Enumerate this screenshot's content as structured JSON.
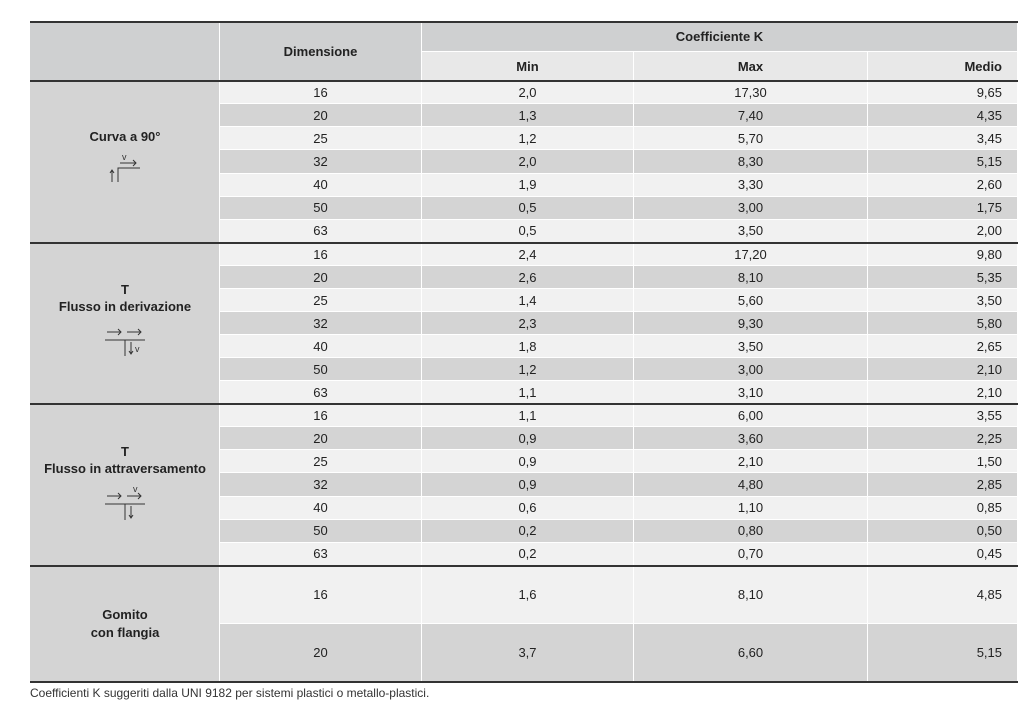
{
  "header": {
    "dimension": "Dimensione",
    "coefficient": "Coefficiente K",
    "subcolumns": [
      "Min",
      "Max",
      "Medio"
    ]
  },
  "groups": [
    {
      "label": [
        "Curva a 90°"
      ],
      "icon": "v",
      "rows": [
        [
          "16",
          "2,0",
          "17,30",
          "9,65"
        ],
        [
          "20",
          "1,3",
          "7,40",
          "4,35"
        ],
        [
          "25",
          "1,2",
          "5,70",
          "3,45"
        ],
        [
          "32",
          "2,0",
          "8,30",
          "5,15"
        ],
        [
          "40",
          "1,9",
          "3,30",
          "2,60"
        ],
        [
          "50",
          "0,5",
          "3,00",
          "1,75"
        ],
        [
          "63",
          "0,5",
          "3,50",
          "2,00"
        ]
      ]
    },
    {
      "label": [
        "T",
        "Flusso in derivazione"
      ],
      "icon": "v",
      "rows": [
        [
          "16",
          "2,4",
          "17,20",
          "9,80"
        ],
        [
          "20",
          "2,6",
          "8,10",
          "5,35"
        ],
        [
          "25",
          "1,4",
          "5,60",
          "3,50"
        ],
        [
          "32",
          "2,3",
          "9,30",
          "5,80"
        ],
        [
          "40",
          "1,8",
          "3,50",
          "2,65"
        ],
        [
          "50",
          "1,2",
          "3,00",
          "2,10"
        ],
        [
          "63",
          "1,1",
          "3,10",
          "2,10"
        ]
      ]
    },
    {
      "label": [
        "T",
        "Flusso in attraversamento"
      ],
      "icon": "v",
      "rows": [
        [
          "16",
          "1,1",
          "6,00",
          "3,55"
        ],
        [
          "20",
          "0,9",
          "3,60",
          "2,25"
        ],
        [
          "25",
          "0,9",
          "2,10",
          "1,50"
        ],
        [
          "32",
          "0,9",
          "4,80",
          "2,85"
        ],
        [
          "40",
          "0,6",
          "1,10",
          "0,85"
        ],
        [
          "50",
          "0,2",
          "0,80",
          "0,50"
        ],
        [
          "63",
          "0,2",
          "0,70",
          "0,45"
        ]
      ]
    },
    {
      "label": [
        "Gomito",
        "con flangia"
      ],
      "rows": [
        [
          "16",
          "1,6",
          "8,10",
          "4,85"
        ],
        [
          "20",
          "3,7",
          "6,60",
          "5,15"
        ]
      ]
    }
  ],
  "footnote": "Coefficienti K suggeriti dalla UNI 9182 per sistemi plastici o metallo-plastici."
}
